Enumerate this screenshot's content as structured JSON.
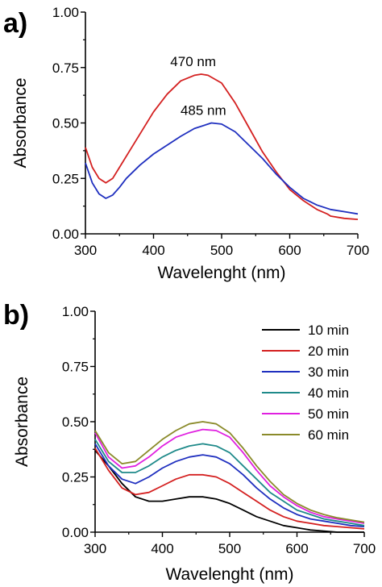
{
  "chart_data": [
    {
      "type": "line",
      "panel_label": "a)",
      "xlabel": "Wavelenght (nm)",
      "ylabel": "Absorbance",
      "xlim": [
        300,
        700
      ],
      "ylim": [
        0,
        1.0
      ],
      "xticks": [
        300,
        400,
        500,
        600,
        700
      ],
      "yticks": [
        "0.00",
        "0.25",
        "0.50",
        "0.75",
        "1.00"
      ],
      "grid": false,
      "annotations": [
        {
          "text": "470 nm",
          "x": 470,
          "y": 0.72
        },
        {
          "text": "485 nm",
          "x": 485,
          "y": 0.5
        }
      ],
      "series": [
        {
          "color": "#d42020",
          "x": [
            300,
            310,
            320,
            330,
            340,
            350,
            360,
            380,
            400,
            420,
            440,
            460,
            470,
            480,
            500,
            520,
            540,
            560,
            580,
            600,
            620,
            640,
            655,
            660,
            680,
            700
          ],
          "y": [
            0.39,
            0.3,
            0.25,
            0.23,
            0.25,
            0.3,
            0.35,
            0.45,
            0.55,
            0.63,
            0.69,
            0.715,
            0.72,
            0.715,
            0.68,
            0.59,
            0.48,
            0.37,
            0.28,
            0.2,
            0.15,
            0.11,
            0.09,
            0.08,
            0.07,
            0.065
          ]
        },
        {
          "color": "#1f2fbf",
          "x": [
            300,
            310,
            320,
            330,
            340,
            350,
            360,
            380,
            400,
            420,
            440,
            460,
            480,
            485,
            500,
            520,
            540,
            560,
            580,
            600,
            620,
            640,
            660,
            680,
            700
          ],
          "y": [
            0.32,
            0.23,
            0.18,
            0.16,
            0.175,
            0.21,
            0.25,
            0.31,
            0.36,
            0.4,
            0.44,
            0.475,
            0.495,
            0.5,
            0.495,
            0.46,
            0.4,
            0.34,
            0.27,
            0.21,
            0.16,
            0.13,
            0.11,
            0.1,
            0.09
          ]
        }
      ]
    },
    {
      "type": "line",
      "panel_label": "b)",
      "xlabel": "Wavelenght (nm)",
      "ylabel": "Absorbance",
      "xlim": [
        300,
        700
      ],
      "ylim": [
        0,
        1.0
      ],
      "xticks": [
        300,
        400,
        500,
        600,
        700
      ],
      "yticks": [
        "0.00",
        "0.25",
        "0.50",
        "0.75",
        "1.00"
      ],
      "grid": false,
      "legend_position": "top-right",
      "series": [
        {
          "name": "10 min",
          "color": "#000000",
          "x": [
            300,
            320,
            340,
            360,
            380,
            400,
            420,
            440,
            460,
            480,
            500,
            520,
            540,
            560,
            580,
            600,
            620,
            640,
            660,
            680,
            700
          ],
          "y": [
            0.37,
            0.3,
            0.22,
            0.16,
            0.14,
            0.14,
            0.15,
            0.16,
            0.16,
            0.15,
            0.13,
            0.1,
            0.07,
            0.05,
            0.03,
            0.02,
            0.01,
            0.005,
            0.0,
            0.0,
            0.0
          ]
        },
        {
          "name": "20 min",
          "color": "#d42020",
          "x": [
            300,
            320,
            340,
            360,
            380,
            400,
            420,
            440,
            460,
            480,
            500,
            520,
            540,
            560,
            580,
            600,
            620,
            640,
            660,
            680,
            700
          ],
          "y": [
            0.38,
            0.28,
            0.2,
            0.17,
            0.18,
            0.21,
            0.24,
            0.26,
            0.26,
            0.25,
            0.22,
            0.18,
            0.14,
            0.1,
            0.07,
            0.05,
            0.04,
            0.03,
            0.025,
            0.02,
            0.015
          ]
        },
        {
          "name": "30 min",
          "color": "#1f2fbf",
          "x": [
            300,
            320,
            340,
            360,
            380,
            400,
            420,
            440,
            460,
            480,
            500,
            520,
            540,
            560,
            580,
            600,
            620,
            640,
            660,
            680,
            700
          ],
          "y": [
            0.4,
            0.3,
            0.24,
            0.22,
            0.25,
            0.29,
            0.32,
            0.34,
            0.35,
            0.34,
            0.31,
            0.26,
            0.2,
            0.15,
            0.11,
            0.08,
            0.06,
            0.05,
            0.04,
            0.03,
            0.025
          ]
        },
        {
          "name": "40 min",
          "color": "#1f8a8a",
          "x": [
            300,
            320,
            340,
            360,
            380,
            400,
            420,
            440,
            460,
            480,
            500,
            520,
            540,
            560,
            580,
            600,
            620,
            640,
            660,
            680,
            700
          ],
          "y": [
            0.42,
            0.32,
            0.27,
            0.27,
            0.3,
            0.34,
            0.37,
            0.39,
            0.4,
            0.39,
            0.36,
            0.3,
            0.24,
            0.18,
            0.14,
            0.1,
            0.08,
            0.06,
            0.05,
            0.04,
            0.03
          ]
        },
        {
          "name": "50 min",
          "color": "#e020e0",
          "x": [
            300,
            320,
            340,
            360,
            380,
            400,
            420,
            440,
            460,
            480,
            500,
            520,
            540,
            560,
            580,
            600,
            620,
            640,
            660,
            680,
            700
          ],
          "y": [
            0.45,
            0.34,
            0.29,
            0.3,
            0.34,
            0.39,
            0.43,
            0.45,
            0.465,
            0.46,
            0.43,
            0.36,
            0.28,
            0.21,
            0.16,
            0.12,
            0.09,
            0.07,
            0.06,
            0.05,
            0.04
          ]
        },
        {
          "name": "60 min",
          "color": "#8a8a2a",
          "x": [
            300,
            320,
            340,
            360,
            380,
            400,
            420,
            440,
            460,
            480,
            500,
            520,
            540,
            560,
            580,
            600,
            620,
            640,
            660,
            680,
            700
          ],
          "y": [
            0.46,
            0.36,
            0.31,
            0.32,
            0.37,
            0.42,
            0.46,
            0.49,
            0.5,
            0.49,
            0.45,
            0.38,
            0.3,
            0.23,
            0.17,
            0.13,
            0.1,
            0.08,
            0.065,
            0.055,
            0.045
          ]
        }
      ]
    }
  ]
}
